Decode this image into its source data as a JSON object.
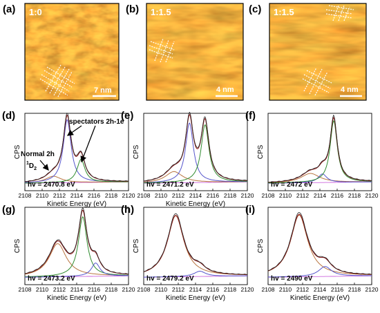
{
  "stm_panels": [
    {
      "label": "(a)",
      "ratio": "1:0",
      "scale": "7 nm",
      "lattice": "bottom-left"
    },
    {
      "label": "(b)",
      "ratio": "1:1.5",
      "scale": "4 nm",
      "lattice": "middle-left"
    },
    {
      "label": "(c)",
      "ratio": "1:1.5",
      "scale": "4 nm",
      "lattice": "top-right-and-bottom"
    }
  ],
  "annotations": {
    "normal": "Normal 2h",
    "normal_term_base": "D",
    "normal_term_sup": "1",
    "normal_term_sub": "2",
    "spectators": "spectators 2h-1e"
  },
  "colors": {
    "total": "#222222",
    "fit": "#8b1a1a",
    "normal_comp": "#b8743f",
    "green_comp": "#2e8b2e",
    "blue_comp": "#5555cc",
    "background": "#cc66dd"
  },
  "chart_data": [
    {
      "label": "(d)",
      "type": "line",
      "hv": "hv = 2470.8 eV",
      "xlabel": "Kinetic Energy (eV)",
      "ylabel": "CPS",
      "xlim": [
        2108,
        2120
      ],
      "xticks": [
        "2108",
        "2110",
        "2112",
        "2114",
        "2116",
        "2118",
        "2120"
      ],
      "components": [
        {
          "role": "normal",
          "center": 2111.3,
          "amp": 0.1,
          "width": 1.1
        },
        {
          "role": "blue",
          "center": 2112.9,
          "amp": 0.95,
          "width": 0.55
        },
        {
          "role": "green",
          "center": 2114.5,
          "amp": 0.35,
          "width": 0.55
        }
      ]
    },
    {
      "label": "(e)",
      "type": "line",
      "hv": "hv = 2471.2 eV",
      "xlabel": "Kinetic Energy (eV)",
      "ylabel": "CPS",
      "xlim": [
        2108,
        2120
      ],
      "xticks": [
        "2108",
        "2110",
        "2112",
        "2114",
        "2116",
        "2118",
        "2120"
      ],
      "components": [
        {
          "role": "normal",
          "center": 2111.5,
          "amp": 0.17,
          "width": 1.2
        },
        {
          "role": "blue",
          "center": 2113.3,
          "amp": 0.9,
          "width": 0.55
        },
        {
          "role": "green",
          "center": 2115.1,
          "amp": 0.87,
          "width": 0.55
        }
      ]
    },
    {
      "label": "(f)",
      "type": "line",
      "hv": "hv = 2472 eV",
      "xlabel": "",
      "ylabel": "CPS",
      "xlim": [
        2108,
        2120
      ],
      "xticks": [
        "2108",
        "2110",
        "2112",
        "2114",
        "2116",
        "2118",
        "2120"
      ],
      "components": [
        {
          "role": "normal",
          "center": 2112.9,
          "amp": 0.14,
          "width": 1.3
        },
        {
          "role": "blue",
          "center": 2114.3,
          "amp": 0.13,
          "width": 0.6
        },
        {
          "role": "green",
          "center": 2115.6,
          "amp": 0.93,
          "width": 0.5
        }
      ]
    },
    {
      "label": "(g)",
      "type": "line",
      "hv": "hv = 2473.2 eV",
      "xlabel": "Kinetic Energy (eV)",
      "ylabel": "CPS",
      "xlim": [
        2108,
        2120
      ],
      "xticks": [
        "2108",
        "2110",
        "2112",
        "2114",
        "2116",
        "2118",
        "2120"
      ],
      "components": [
        {
          "role": "normal",
          "center": 2111.8,
          "amp": 0.5,
          "width": 1.2
        },
        {
          "role": "green",
          "center": 2114.7,
          "amp": 0.9,
          "width": 0.6
        },
        {
          "role": "blue",
          "center": 2116.2,
          "amp": 0.2,
          "width": 0.6
        }
      ]
    },
    {
      "label": "(h)",
      "type": "line",
      "hv": "hv = 2479.2 eV",
      "xlabel": "Kinetic Energy (eV)",
      "ylabel": "CPS",
      "xlim": [
        2108,
        2120
      ],
      "xticks": [
        "2108",
        "2110",
        "2112",
        "2114",
        "2116",
        "2118",
        "2120"
      ],
      "components": [
        {
          "role": "normal",
          "center": 2111.7,
          "amp": 0.92,
          "width": 1.15
        },
        {
          "role": "blue",
          "center": 2114.5,
          "amp": 0.08,
          "width": 0.8
        }
      ]
    },
    {
      "label": "(i)",
      "type": "line",
      "hv": "hv = 2490 eV",
      "xlabel": "Kinetic Energy (eV)",
      "ylabel": "CPS",
      "xlim": [
        2108,
        2120
      ],
      "xticks": [
        "2108",
        "2110",
        "2112",
        "2114",
        "2116",
        "2118",
        "2120"
      ],
      "components": [
        {
          "role": "normal",
          "center": 2111.6,
          "amp": 0.93,
          "width": 1.2
        },
        {
          "role": "blue",
          "center": 2114.6,
          "amp": 0.15,
          "width": 0.9
        }
      ]
    }
  ]
}
